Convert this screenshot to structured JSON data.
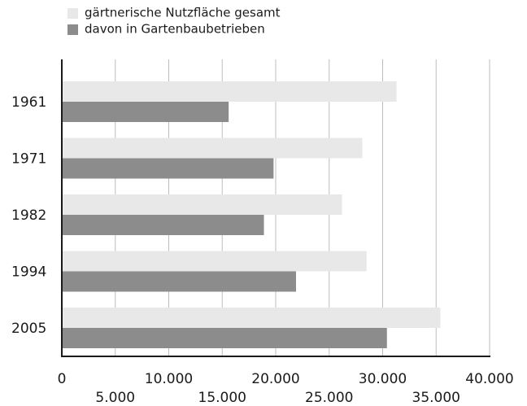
{
  "chart_data": {
    "type": "bar",
    "orientation": "horizontal",
    "categories": [
      "1961",
      "1971",
      "1982",
      "1994",
      "2005"
    ],
    "series": [
      {
        "name": "gärtnerische Nutzfläche gesamt",
        "color": "#e8e8e8",
        "values": [
          31300,
          28100,
          26200,
          28500,
          35400
        ]
      },
      {
        "name": "davon in Gartenbaubetrieben",
        "color": "#8c8c8d",
        "values": [
          15600,
          19800,
          18900,
          21900,
          30400
        ]
      }
    ],
    "xlim": [
      0,
      40000
    ],
    "xticks": [
      0,
      {
        "value": 5000,
        "label": "5.000"
      },
      {
        "value": 10000,
        "label": "10.000"
      },
      {
        "value": 15000,
        "label": "15.000"
      },
      {
        "value": 20000,
        "label": "20.000"
      },
      {
        "value": 25000,
        "label": "25.000"
      },
      {
        "value": 30000,
        "label": "30.000"
      },
      {
        "value": 35000,
        "label": "35.000"
      },
      {
        "value": 40000,
        "label": "40.000"
      }
    ],
    "grid": true,
    "legend": "top"
  }
}
